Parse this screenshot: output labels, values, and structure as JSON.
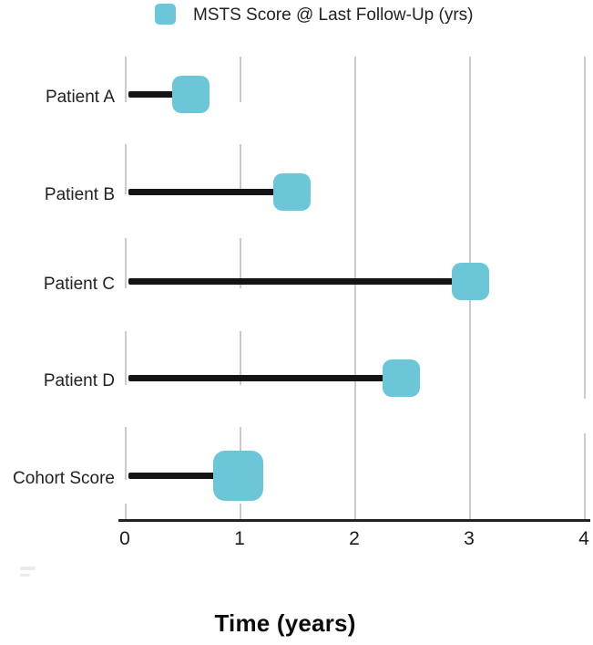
{
  "legend": {
    "label": "MSTS Score @ Last Follow-Up (yrs)"
  },
  "colors": {
    "marker_teal": "#6bc6d8",
    "stick_black": "#141414",
    "gridline_gray": "#c9c9ce",
    "axis_dark": "#212226"
  },
  "chart_data": {
    "type": "bar",
    "subtype": "horizontal-lollipop",
    "title": "",
    "legend_entries": [
      "MSTS Score @ Last Follow-Up (yrs)"
    ],
    "categories": [
      "Patient A",
      "Patient B",
      "Patient C",
      "Patient D",
      "Cohort Score"
    ],
    "values": [
      0.57,
      1.45,
      3.0,
      2.4,
      0.98
    ],
    "xlabel": "Time (years)",
    "ylabel": "",
    "xlim": [
      0,
      4
    ],
    "x_ticks": [
      0,
      1,
      2,
      3,
      4
    ],
    "x_tick_labels": [
      "0",
      "1",
      "2",
      "3",
      "4"
    ],
    "grid": "vertical, light gray, segmented per row band",
    "legend_position": "top-center",
    "marker_shape": "rounded-square",
    "note_emphasis": "Cohort Score row drawn with a larger marker than patient rows"
  },
  "axis": {
    "title": "Time (years)"
  }
}
